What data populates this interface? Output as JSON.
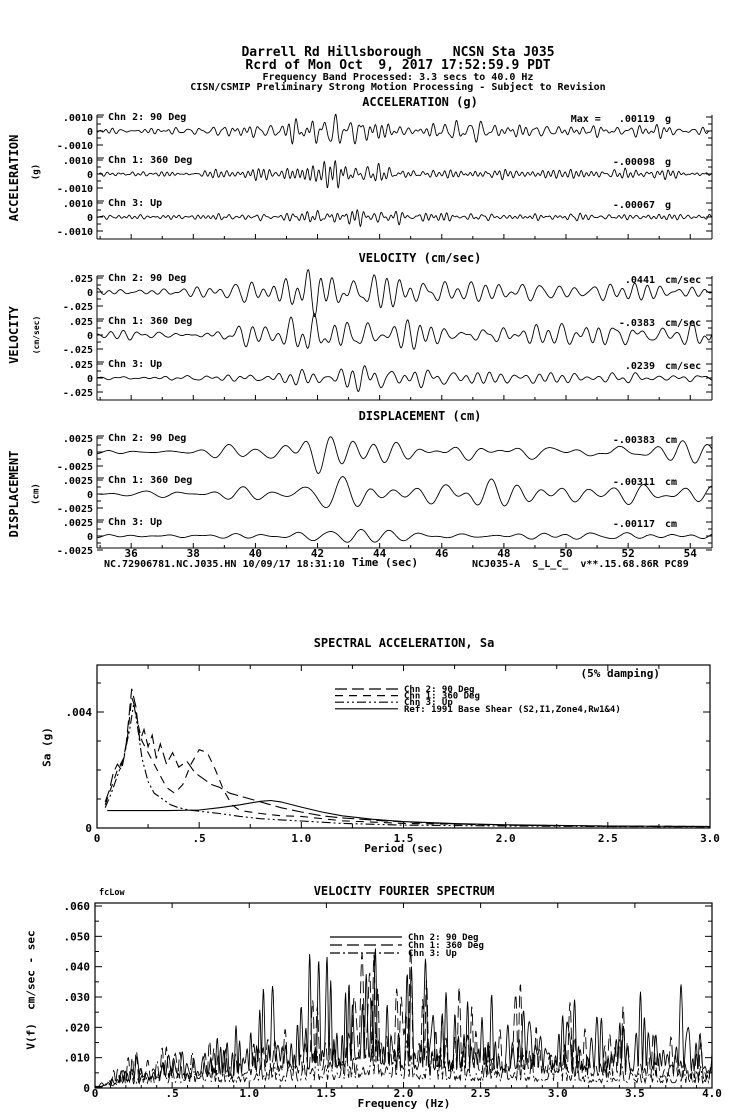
{
  "header": {
    "line1": "Darrell Rd Hillsborough    NCSN Sta J035",
    "line2": "Rcrd of Mon Oct  9, 2017 17:52:59.9 PDT",
    "line3": "Frequency Band Processed: 3.3 secs to 40.0 Hz",
    "line4": "CISN/CSMIP Preliminary Strong Motion Processing - Subject to Revision"
  },
  "time_axis": {
    "label": "Time (sec)",
    "tick_labels": [
      "36",
      "38",
      "40",
      "42",
      "44",
      "46",
      "48",
      "50",
      "52",
      "54"
    ],
    "tick_values": [
      36,
      38,
      40,
      42,
      44,
      46,
      48,
      50,
      52,
      54
    ],
    "range": [
      34.9,
      54.7
    ]
  },
  "footers": {
    "left": "NC.72906781.NC.J035.HN 10/09/17 18:31:10",
    "right": "NCJ035-A  S_L_C_  v**.15.68.86R PC89"
  },
  "chart_data": [
    {
      "id": "acceleration",
      "type": "line",
      "title": "ACCELERATION (g)",
      "ylabel": "ACCELERATION",
      "yunit": "(g)",
      "ytick_labels": [
        ".0010",
        "0",
        "-.0010"
      ],
      "yscale": 0.001,
      "xlim": [
        35,
        55
      ],
      "envelope_t": [
        35,
        36,
        37,
        38,
        39,
        39.5,
        40,
        40.5,
        41,
        41.5,
        42,
        42.5,
        43,
        43.5,
        44,
        44.5,
        45,
        46,
        47,
        48,
        49,
        50,
        51,
        52,
        53,
        54,
        55
      ],
      "series": [
        {
          "name": "Chn 2: 90 Deg",
          "peak_label": "Max =   .00119",
          "unit": "g",
          "peak": 0.00119,
          "envelope": [
            0.18,
            0.2,
            0.19,
            0.24,
            0.3,
            0.34,
            0.42,
            0.52,
            0.68,
            0.82,
            0.95,
            0.85,
            1.0,
            0.8,
            0.62,
            0.55,
            0.5,
            0.44,
            0.52,
            0.4,
            0.35,
            0.46,
            0.4,
            0.34,
            0.38,
            0.32,
            0.3
          ]
        },
        {
          "name": "Chn 1: 360 Deg",
          "peak_label": "-.00098",
          "unit": "g",
          "peak": 0.00098,
          "envelope": [
            0.2,
            0.21,
            0.23,
            0.26,
            0.3,
            0.33,
            0.4,
            0.48,
            0.62,
            0.92,
            0.82,
            1.0,
            0.9,
            0.76,
            0.62,
            0.52,
            0.46,
            0.42,
            0.46,
            0.4,
            0.36,
            0.42,
            0.36,
            0.34,
            0.32,
            0.3,
            0.29
          ]
        },
        {
          "name": "Chn 3: Up",
          "peak_label": "-.00067",
          "unit": "g",
          "peak": 0.00067,
          "envelope": [
            0.24,
            0.26,
            0.25,
            0.28,
            0.3,
            0.32,
            0.36,
            0.42,
            0.52,
            0.62,
            0.72,
            0.82,
            0.92,
            1.0,
            0.8,
            0.62,
            0.52,
            0.42,
            0.4,
            0.38,
            0.36,
            0.37,
            0.34,
            0.32,
            0.31,
            0.3,
            0.28
          ]
        }
      ]
    },
    {
      "id": "velocity",
      "type": "line",
      "title": "VELOCITY (cm/sec)",
      "ylabel": "VELOCITY",
      "yunit": "(cm/sec)",
      "ytick_labels": [
        ".025",
        "0",
        "-.025"
      ],
      "yscale": 0.025,
      "xlim": [
        35,
        55
      ],
      "envelope_t": [
        35,
        36,
        37,
        38,
        39,
        39.5,
        40,
        40.5,
        41,
        41.5,
        42,
        42.5,
        43,
        43.5,
        44,
        44.5,
        45,
        46,
        47,
        48,
        49,
        50,
        51,
        52,
        53,
        54,
        55
      ],
      "series": [
        {
          "name": "Chn 2: 90 Deg",
          "peak_label": ".0441",
          "unit": "cm/sec",
          "peak": 0.0441,
          "envelope": [
            0.16,
            0.18,
            0.19,
            0.22,
            0.28,
            0.32,
            0.42,
            0.52,
            0.62,
            0.88,
            1.0,
            0.95,
            0.9,
            0.8,
            0.72,
            0.62,
            0.56,
            0.5,
            0.56,
            0.46,
            0.42,
            0.5,
            0.46,
            0.4,
            0.38,
            0.36,
            0.34
          ]
        },
        {
          "name": "Chn 1: 360 Deg",
          "peak_label": "-.0383",
          "unit": "cm/sec",
          "peak": 0.0383,
          "envelope": [
            0.14,
            0.16,
            0.18,
            0.2,
            0.26,
            0.3,
            0.4,
            0.52,
            0.66,
            0.82,
            1.0,
            0.94,
            0.86,
            0.8,
            0.7,
            0.6,
            0.55,
            0.48,
            0.52,
            0.44,
            0.4,
            0.46,
            0.42,
            0.38,
            0.36,
            0.34,
            0.32
          ]
        },
        {
          "name": "Chn 3: Up",
          "peak_label": ".0239",
          "unit": "cm/sec",
          "peak": 0.0239,
          "envelope": [
            0.14,
            0.16,
            0.17,
            0.2,
            0.22,
            0.26,
            0.32,
            0.36,
            0.42,
            0.56,
            0.72,
            0.82,
            1.0,
            0.9,
            0.8,
            0.7,
            0.6,
            0.52,
            0.46,
            0.43,
            0.4,
            0.39,
            0.37,
            0.35,
            0.34,
            0.32,
            0.3
          ]
        }
      ]
    },
    {
      "id": "displacement",
      "type": "line",
      "title": "DISPLACEMENT (cm)",
      "ylabel": "DISPLACEMENT",
      "yunit": "(cm)",
      "ytick_labels": [
        ".0025",
        "0",
        "-.0025"
      ],
      "yscale": 0.0025,
      "xlim": [
        35,
        55
      ],
      "envelope_t": [
        35,
        36,
        37,
        38,
        39,
        39.5,
        40,
        40.5,
        41,
        41.5,
        42,
        42.5,
        43,
        43.5,
        44,
        44.5,
        45,
        46,
        47,
        48,
        49,
        50,
        51,
        52,
        53,
        54,
        55
      ],
      "series": [
        {
          "name": "Chn 2: 90 Deg",
          "peak_label": "-.00383",
          "unit": "cm",
          "peak": 0.00383,
          "envelope": [
            0.14,
            0.2,
            0.17,
            0.22,
            0.3,
            0.34,
            0.46,
            0.6,
            0.72,
            0.82,
            1.0,
            0.9,
            0.85,
            0.8,
            0.76,
            0.7,
            0.62,
            0.55,
            0.62,
            0.52,
            0.46,
            0.56,
            0.5,
            0.46,
            0.42,
            0.46,
            0.4
          ]
        },
        {
          "name": "Chn 1: 360 Deg",
          "peak_label": "-.00311",
          "unit": "cm",
          "peak": 0.00311,
          "envelope": [
            0.18,
            0.2,
            0.22,
            0.26,
            0.3,
            0.36,
            0.48,
            0.62,
            0.78,
            0.9,
            1.0,
            0.92,
            0.84,
            0.8,
            0.74,
            0.68,
            0.6,
            0.52,
            0.58,
            0.5,
            0.46,
            0.52,
            0.46,
            0.44,
            0.4,
            0.42,
            0.38
          ]
        },
        {
          "name": "Chn 3: Up",
          "peak_label": "-.00117",
          "unit": "cm",
          "peak": 0.00117,
          "envelope": [
            0.2,
            0.24,
            0.22,
            0.26,
            0.3,
            0.32,
            0.4,
            0.5,
            0.6,
            0.7,
            0.8,
            0.9,
            1.0,
            0.9,
            0.8,
            0.72,
            0.64,
            0.56,
            0.5,
            0.52,
            0.48,
            0.5,
            0.46,
            0.44,
            0.42,
            0.44,
            0.4
          ]
        }
      ]
    },
    {
      "id": "spectral_acceleration",
      "type": "line",
      "title": "SPECTRAL ACCELERATION, Sa",
      "annotation": "(5% damping)",
      "xlabel": "Period (sec)",
      "ylabel": "Sa (g)",
      "xtick_labels": [
        "0",
        ".5",
        "1.0",
        "1.5",
        "2.0",
        "2.5",
        "3.0"
      ],
      "xtick_values": [
        0,
        0.5,
        1,
        1.5,
        2,
        2.5,
        3
      ],
      "ytick_labels": [
        ".004",
        "0"
      ],
      "ytick_values": [
        0.004,
        0
      ],
      "xlim": [
        0,
        3
      ],
      "ylim": [
        0,
        0.00562
      ],
      "series": [
        {
          "name": "Chn 2: 90 Deg",
          "style": "longdash",
          "x": [
            0.04,
            0.06,
            0.08,
            0.1,
            0.12,
            0.14,
            0.16,
            0.17,
            0.19,
            0.21,
            0.23,
            0.25,
            0.27,
            0.29,
            0.31,
            0.34,
            0.37,
            0.4,
            0.44,
            0.48,
            0.52,
            0.56,
            0.6,
            0.65,
            0.7,
            0.75,
            0.8,
            0.9,
            1.0,
            1.1,
            1.2,
            1.4,
            1.6,
            1.8,
            2.0,
            2.5,
            3.0
          ],
          "y": [
            0.0009,
            0.0013,
            0.0019,
            0.0022,
            0.002,
            0.0027,
            0.0041,
            0.0048,
            0.0042,
            0.003,
            0.0034,
            0.0028,
            0.0032,
            0.0024,
            0.0029,
            0.0022,
            0.0026,
            0.0021,
            0.0023,
            0.0019,
            0.0017,
            0.0015,
            0.0014,
            0.0012,
            0.0011,
            0.001,
            0.0009,
            0.0007,
            0.00055,
            0.00042,
            0.00035,
            0.00025,
            0.00018,
            0.00013,
            0.0001,
            6e-05,
            5e-05
          ]
        },
        {
          "name": "Chn 1: 360 Deg",
          "style": "dash",
          "x": [
            0.04,
            0.07,
            0.1,
            0.13,
            0.15,
            0.17,
            0.18,
            0.2,
            0.22,
            0.25,
            0.28,
            0.31,
            0.34,
            0.38,
            0.42,
            0.46,
            0.5,
            0.54,
            0.58,
            0.62,
            0.66,
            0.7,
            0.8,
            0.9,
            1.0,
            1.2,
            1.5,
            2.0,
            2.5,
            3.0
          ],
          "y": [
            0.0008,
            0.0014,
            0.002,
            0.0024,
            0.0032,
            0.0045,
            0.0043,
            0.0036,
            0.003,
            0.0026,
            0.0022,
            0.0018,
            0.0014,
            0.0012,
            0.0015,
            0.0022,
            0.0027,
            0.0026,
            0.002,
            0.0013,
            0.0008,
            0.0006,
            0.0005,
            0.00042,
            0.0004,
            0.00025,
            0.00016,
            0.0001,
            7e-05,
            5e-05
          ]
        },
        {
          "name": "Chn 3: Up",
          "style": "dashdotdot",
          "x": [
            0.04,
            0.07,
            0.1,
            0.13,
            0.16,
            0.18,
            0.2,
            0.22,
            0.25,
            0.28,
            0.32,
            0.36,
            0.4,
            0.45,
            0.5,
            0.6,
            0.7,
            0.8,
            0.9,
            1.0,
            1.2,
            1.5,
            2.0,
            2.5,
            3.0
          ],
          "y": [
            0.0007,
            0.0012,
            0.0018,
            0.0024,
            0.0034,
            0.0043,
            0.0034,
            0.0024,
            0.0016,
            0.0012,
            0.001,
            0.0008,
            0.0007,
            0.00062,
            0.00058,
            0.0005,
            0.0004,
            0.00032,
            0.00028,
            0.00024,
            0.00016,
            0.0001,
            7e-05,
            5e-05,
            4e-05
          ]
        },
        {
          "name": "Ref: 1991 Base Shear (S2,I1,Zone4,Rw1&4)",
          "style": "solid",
          "x": [
            0.05,
            0.2,
            0.35,
            0.5,
            0.6,
            0.7,
            0.8,
            0.85,
            0.9,
            1.0,
            1.1,
            1.2,
            1.35,
            1.5,
            1.75,
            2.0,
            2.5,
            3.0
          ],
          "y": [
            0.0006,
            0.0006,
            0.0006,
            0.00062,
            0.0007,
            0.0008,
            0.00092,
            0.00095,
            0.0009,
            0.00072,
            0.00055,
            0.00042,
            0.0003,
            0.00022,
            0.00015,
            0.00011,
            7e-05,
            5e-05
          ]
        }
      ]
    },
    {
      "id": "velocity_fourier_spectrum",
      "type": "line",
      "title": "VELOCITY FOURIER SPECTRUM",
      "corner_label": "fcLow",
      "xlabel": "Frequency (Hz)",
      "ylabel": "V(f)  cm/sec - sec",
      "xtick_labels": [
        "0",
        ".5",
        "1.0",
        "1.5",
        "2.0",
        "2.5",
        "3.0",
        "3.5",
        "4.0"
      ],
      "xtick_values": [
        0,
        0.5,
        1,
        1.5,
        2,
        2.5,
        3,
        3.5,
        4
      ],
      "ytick_labels": [
        "0",
        ".010",
        ".020",
        ".030",
        ".040",
        ".050",
        ".060"
      ],
      "ytick_values": [
        0,
        0.01,
        0.02,
        0.03,
        0.04,
        0.05,
        0.06
      ],
      "xlim": [
        0,
        4
      ],
      "ylim": [
        0,
        0.061
      ],
      "envelope_f": [
        0,
        0.1,
        0.2,
        0.3,
        0.4,
        0.5,
        0.6,
        0.7,
        0.8,
        0.9,
        1,
        1.1,
        1.2,
        1.3,
        1.4,
        1.5,
        1.6,
        1.7,
        1.8,
        1.9,
        2,
        2.1,
        2.2,
        2.3,
        2.4,
        2.5,
        2.6,
        2.7,
        2.8,
        2.9,
        3,
        3.1,
        3.2,
        3.3,
        3.4,
        3.5,
        3.6,
        3.7,
        3.8,
        3.9,
        4
      ],
      "series": [
        {
          "name": "Chn 2: 90 Deg",
          "style": "solid",
          "peak": 0.046,
          "envelope": [
            0.02,
            0.12,
            0.2,
            0.25,
            0.3,
            0.38,
            0.34,
            0.4,
            0.45,
            0.38,
            0.55,
            0.8,
            0.85,
            0.6,
            0.8,
            0.7,
            0.62,
            0.95,
            0.85,
            0.7,
            0.62,
            0.58,
            0.7,
            0.55,
            0.62,
            0.78,
            0.55,
            0.6,
            0.7,
            0.55,
            0.65,
            0.5,
            0.6,
            0.45,
            0.8,
            0.5,
            0.6,
            0.7,
            0.55,
            0.5,
            0.45
          ]
        },
        {
          "name": "Chn 1: 360 Deg",
          "style": "longdash",
          "peak": 0.046,
          "envelope": [
            0.02,
            0.12,
            0.22,
            0.28,
            0.32,
            0.35,
            0.3,
            0.35,
            0.4,
            0.35,
            0.45,
            0.55,
            0.6,
            0.5,
            0.6,
            0.65,
            0.7,
            1.0,
            0.95,
            0.8,
            0.85,
            0.8,
            0.7,
            0.6,
            0.55,
            0.5,
            0.45,
            0.6,
            0.65,
            0.5,
            0.55,
            0.5,
            0.45,
            0.4,
            0.45,
            0.4,
            0.35,
            0.4,
            0.35,
            0.3,
            0.3
          ]
        },
        {
          "name": "Chn 3: Up",
          "style": "dashdot",
          "peak": 0.018,
          "envelope": [
            0.02,
            0.15,
            0.25,
            0.3,
            0.35,
            0.4,
            0.38,
            0.42,
            0.45,
            0.4,
            0.5,
            0.55,
            0.5,
            0.45,
            0.55,
            0.6,
            0.55,
            0.7,
            1.0,
            0.8,
            0.7,
            0.65,
            0.6,
            0.55,
            0.5,
            0.55,
            0.5,
            0.45,
            0.5,
            0.45,
            0.5,
            0.45,
            0.4,
            0.38,
            0.42,
            0.4,
            0.38,
            0.4,
            0.36,
            0.34,
            0.32
          ]
        }
      ]
    }
  ]
}
